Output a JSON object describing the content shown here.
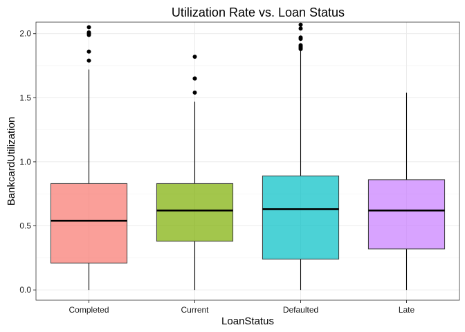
{
  "chart_data": {
    "type": "boxplot",
    "title": "Utilization Rate vs. Loan Status",
    "xlabel": "LoanStatus",
    "ylabel": "BankcardUtilization",
    "ylim": [
      -0.08,
      2.09
    ],
    "yticks": [
      "0.0",
      "0.5",
      "1.0",
      "1.5",
      "2.0"
    ],
    "ytick_values": [
      0.0,
      0.5,
      1.0,
      1.5,
      2.0
    ],
    "grid": true,
    "categories": [
      "Completed",
      "Current",
      "Defaulted",
      "Late"
    ],
    "boxes": [
      {
        "category": "Completed",
        "color": "#f8766d",
        "min": 0.0,
        "q1": 0.21,
        "median": 0.54,
        "q3": 0.83,
        "max": 1.72,
        "outliers": [
          1.79,
          1.86,
          1.99,
          2.0,
          2.01,
          2.05
        ]
      },
      {
        "category": "Current",
        "color": "#7cae00",
        "min": 0.0,
        "q1": 0.38,
        "median": 0.62,
        "q3": 0.83,
        "max": 1.47,
        "outliers": [
          1.54,
          1.65,
          1.65,
          1.82
        ]
      },
      {
        "category": "Defaulted",
        "color": "#00bfc4",
        "min": 0.0,
        "q1": 0.24,
        "median": 0.63,
        "q3": 0.89,
        "max": 1.87,
        "outliers": [
          1.88,
          1.89,
          1.9,
          1.91,
          1.96,
          1.97,
          2.04,
          2.07
        ]
      },
      {
        "category": "Late",
        "color": "#c77cff",
        "min": 0.0,
        "q1": 0.32,
        "median": 0.62,
        "q3": 0.86,
        "max": 1.54,
        "outliers": []
      }
    ]
  }
}
